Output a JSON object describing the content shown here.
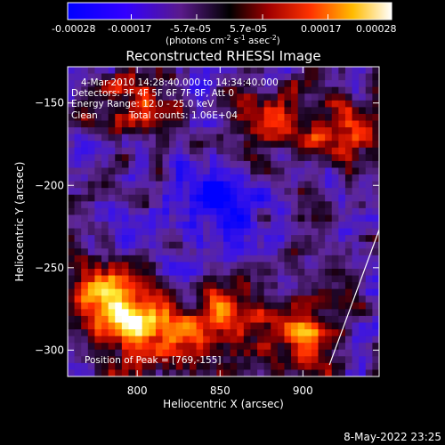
{
  "colorbar": {
    "ticks": [
      "-0.00028",
      "-0.00017",
      "-5.7e-05",
      "5.7e-05",
      "0.00017",
      "0.00028"
    ],
    "range": [
      -0.00028,
      0.00028
    ],
    "unit_main": "(photons cm",
    "unit_sup1": "-2",
    "unit_mid": " s",
    "unit_sup2": "-1",
    "unit_mid2": " asec",
    "unit_sup3": "-2",
    "unit_end": ")",
    "colormap": "rhessi-diverging",
    "colors": [
      "#0000ff",
      "#6600cc",
      "#000000",
      "#cc0000",
      "#ff6600",
      "#ffff00",
      "#ffffff"
    ]
  },
  "chart_data": {
    "type": "heatmap",
    "title": "Reconstructed RHESSI Image",
    "xlabel": "Heliocentric X (arcsec)",
    "ylabel": "Heliocentric Y (arcsec)",
    "xlim": [
      758,
      946
    ],
    "ylim": [
      -316,
      -128
    ],
    "xticks": [
      800,
      850,
      900
    ],
    "yticks": [
      -150,
      -200,
      -250,
      -300
    ],
    "annotations": {
      "time": "4-Mar-2010 14:28:40.000 to 14:34:40.000",
      "detectors": "Detectors: 3F 4F 5F 6F 7F 8F, Att 0",
      "energy": "Energy Range: 12.0 - 25.0 keV",
      "method": "Clean",
      "counts": "Total counts: 1.06E+04",
      "peak": "Position of Peak = [769,-155]"
    },
    "limb_line": [
      [
        916,
        -309
      ],
      [
        946,
        -227
      ]
    ],
    "grid": false,
    "intensity_features": [
      {
        "x": 800,
        "y": -150,
        "level": 0.65
      },
      {
        "x": 780,
        "y": -270,
        "level": 0.95
      },
      {
        "x": 810,
        "y": -290,
        "level": 0.8
      },
      {
        "x": 850,
        "y": -280,
        "level": 0.75
      },
      {
        "x": 880,
        "y": -160,
        "level": 0.6
      },
      {
        "x": 900,
        "y": -290,
        "level": 0.85
      },
      {
        "x": 930,
        "y": -170,
        "level": 0.65
      },
      {
        "x": 850,
        "y": -210,
        "level": -0.6
      }
    ]
  },
  "footer": {
    "date": "8-May-2022 23:25"
  }
}
